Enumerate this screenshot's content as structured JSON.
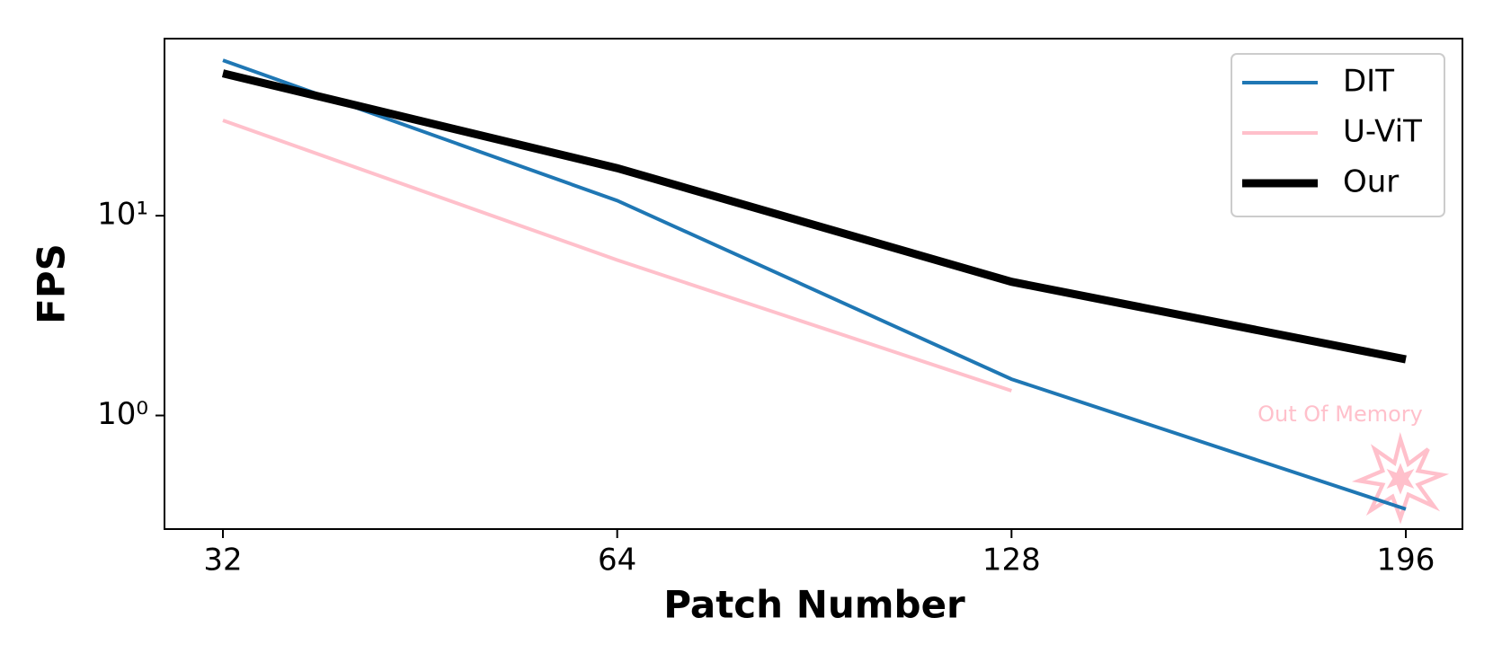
{
  "chart_data": {
    "type": "line",
    "x_label": "Patch Number",
    "y_label": "FPS",
    "categories": [
      "32",
      "64",
      "128",
      "196"
    ],
    "series": [
      {
        "name": "DIT",
        "color": "#1f77b4",
        "values": [
          60,
          11.9,
          1.52,
          0.34
        ]
      },
      {
        "name": "U-ViT",
        "color": "#ffc0cb",
        "values": [
          30,
          6.0,
          1.33,
          null
        ]
      },
      {
        "name": "Our",
        "color": "#000000",
        "values": [
          51.6,
          17.3,
          4.67,
          1.91
        ]
      }
    ],
    "ylim": [
      0.27,
      77
    ],
    "log_y": true,
    "yticks": [
      {
        "value": 1,
        "label": "10⁰"
      },
      {
        "value": 10,
        "label": "10¹"
      }
    ],
    "annotation": "Out Of Memory",
    "legend": "upper right",
    "grid": false
  }
}
